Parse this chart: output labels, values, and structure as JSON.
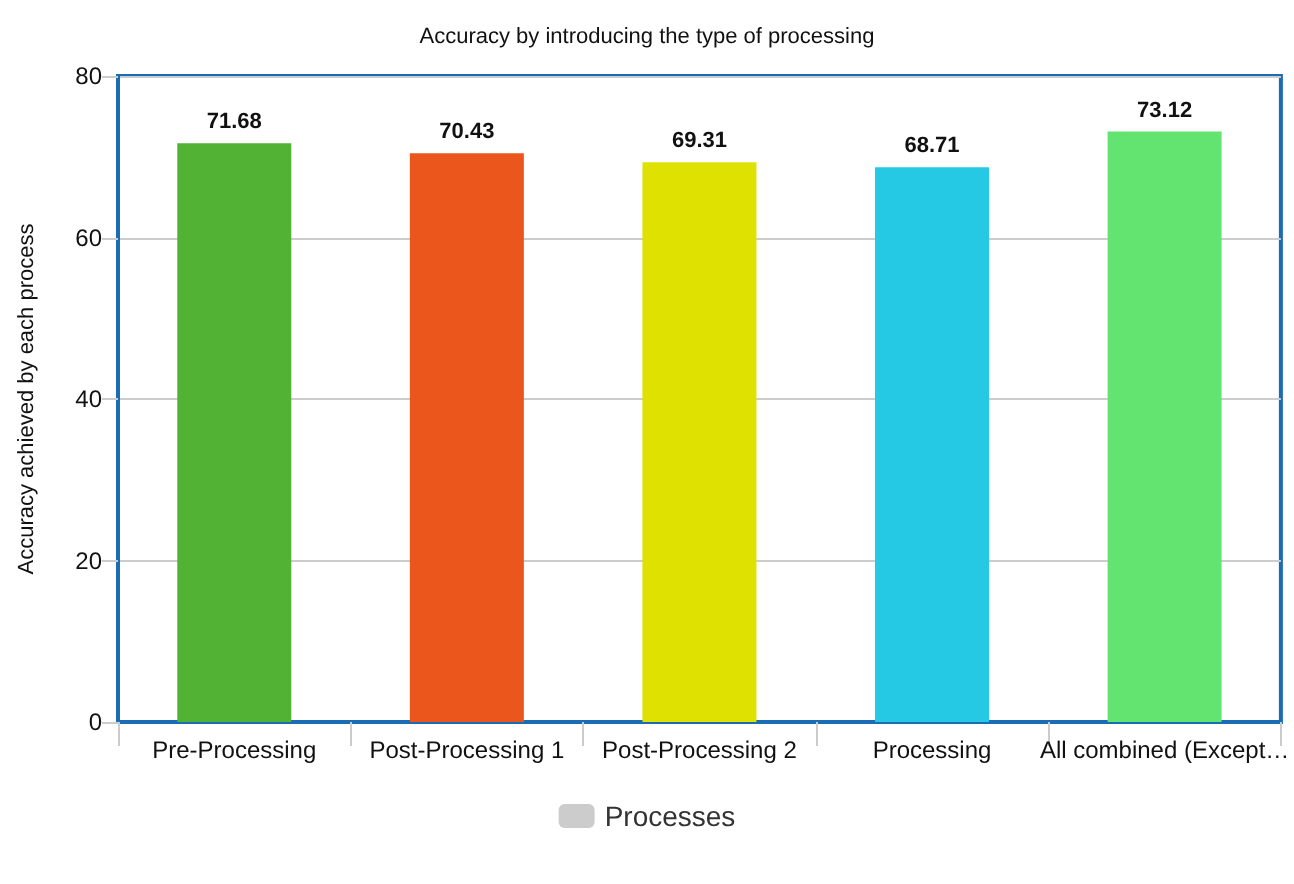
{
  "chart_data": {
    "type": "bar",
    "title": "Accuracy by introducing the type of processing",
    "ylabel": "Accuracy achieved by each process",
    "categories": [
      "Pre-Processing",
      "Post-Processing 1",
      "Post-Processing 2",
      "Processing",
      "All combined (Except…"
    ],
    "series": [
      {
        "name": "Processes",
        "color": "#cccccc",
        "colors": [
          "#52b233",
          "#eb561d",
          "#dfe100",
          "#25c9e3",
          "#63e470"
        ],
        "values": [
          71.68,
          70.43,
          69.31,
          68.71,
          73.12
        ]
      }
    ],
    "ylim": [
      0,
      80
    ],
    "yticks": [
      0,
      20,
      40,
      60,
      80
    ],
    "grid": "y",
    "legend": "bottom",
    "data_labels": true
  }
}
